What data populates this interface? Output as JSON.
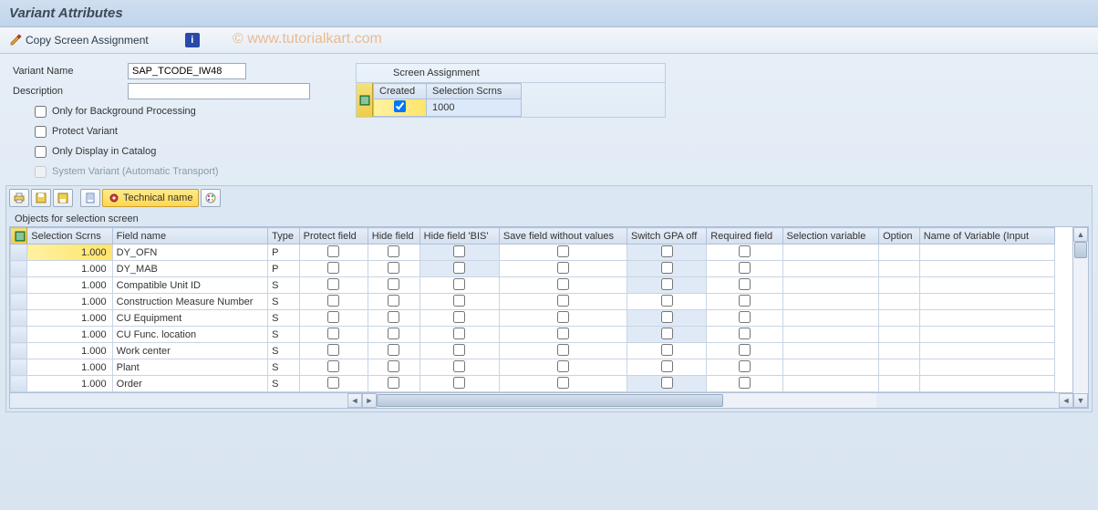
{
  "title": "Variant Attributes",
  "toolbar": {
    "copy_label": "Copy Screen Assignment",
    "info_label": "i"
  },
  "watermark": "© www.tutorialkart.com",
  "form": {
    "variant_label": "Variant Name",
    "variant_value": "SAP_TCODE_IW48",
    "description_label": "Description",
    "description_value": "",
    "chk_bg": "Only for Background Processing",
    "chk_protect": "Protect Variant",
    "chk_catalog": "Only Display in Catalog",
    "chk_system": "System Variant (Automatic Transport)"
  },
  "screen_assign": {
    "title": "Screen Assignment",
    "col_created": "Created",
    "col_scrns": "Selection Scrns",
    "rows": [
      {
        "created": true,
        "scrn": "1000"
      }
    ]
  },
  "grid_toolbar": {
    "tech_name": "Technical name"
  },
  "grid": {
    "caption": "Objects for selection screen",
    "columns": {
      "sel": "Selection Scrns",
      "field": "Field name",
      "type": "Type",
      "protect": "Protect field",
      "hide": "Hide field",
      "hide_bis": "Hide field 'BIS'",
      "save_wo": "Save field without values",
      "gpa": "Switch GPA off",
      "req": "Required field",
      "selvar": "Selection variable",
      "option": "Option",
      "varname": "Name of Variable (Input"
    },
    "col_widths": {
      "rh": 18,
      "sel": 92,
      "field": 168,
      "type": 34,
      "protect": 74,
      "hide": 56,
      "hide_bis": 86,
      "save_wo": 138,
      "gpa": 86,
      "req": 82,
      "selvar": 104,
      "option": 44,
      "varname": 146
    },
    "rows": [
      {
        "sel": "1.000",
        "field": "DY_OFN",
        "type": "P",
        "hl": true,
        "shade_bis": true,
        "shade_gpa": true
      },
      {
        "sel": "1.000",
        "field": "DY_MAB",
        "type": "P",
        "shade_bis": true,
        "shade_gpa": true
      },
      {
        "sel": "1.000",
        "field": "Compatible Unit ID",
        "type": "S",
        "shade_gpa": true
      },
      {
        "sel": "1.000",
        "field": "Construction Measure Number",
        "type": "S"
      },
      {
        "sel": "1.000",
        "field": "CU Equipment",
        "type": "S",
        "shade_gpa": true
      },
      {
        "sel": "1.000",
        "field": "CU Func. location",
        "type": "S",
        "shade_gpa": true
      },
      {
        "sel": "1.000",
        "field": "Work center",
        "type": "S"
      },
      {
        "sel": "1.000",
        "field": "Plant",
        "type": "S"
      },
      {
        "sel": "1.000",
        "field": "Order",
        "type": "S",
        "shade_gpa": true
      }
    ]
  },
  "colors": {
    "accent_yellow": "#ffe569",
    "header_bg": "#d4e0f0",
    "shade_bg": "#e0eaf7"
  }
}
